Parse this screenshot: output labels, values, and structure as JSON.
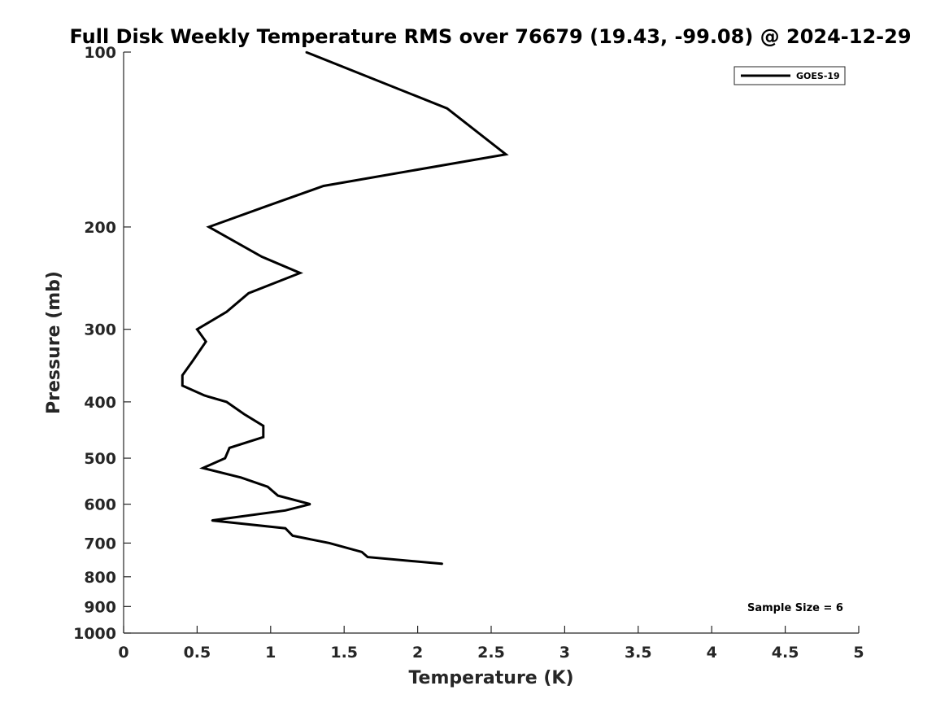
{
  "chart_data": {
    "type": "line",
    "title": "Full Disk Weekly Temperature RMS over 76679 (19.43, -99.08) @ 2024-12-29",
    "xlabel": "Temperature (K)",
    "ylabel": "Pressure (mb)",
    "xlim": [
      0,
      5
    ],
    "ylim": [
      100,
      1000
    ],
    "y_scale": "log",
    "y_reversed": true,
    "grid": false,
    "x_ticks": [
      0,
      0.5,
      1,
      1.5,
      2,
      2.5,
      3,
      3.5,
      4,
      4.5,
      5
    ],
    "x_tick_labels": [
      "0",
      "0.5",
      "1",
      "1.5",
      "2",
      "2.5",
      "3",
      "3.5",
      "4",
      "4.5",
      "5"
    ],
    "y_ticks": [
      100,
      200,
      300,
      400,
      500,
      600,
      700,
      800,
      900,
      1000
    ],
    "y_tick_labels": [
      "100",
      "200",
      "300",
      "400",
      "500",
      "600",
      "700",
      "800",
      "900",
      "1000"
    ],
    "legend_position": "top-right",
    "series": [
      {
        "name": "GOES-19",
        "color": "#000000",
        "points": [
          {
            "x": 1.24,
            "y": 100
          },
          {
            "x": 2.2,
            "y": 125
          },
          {
            "x": 2.6,
            "y": 150
          },
          {
            "x": 1.36,
            "y": 170
          },
          {
            "x": 0.95,
            "y": 185
          },
          {
            "x": 0.58,
            "y": 200
          },
          {
            "x": 0.94,
            "y": 225
          },
          {
            "x": 1.2,
            "y": 240
          },
          {
            "x": 0.85,
            "y": 260
          },
          {
            "x": 0.7,
            "y": 280
          },
          {
            "x": 0.5,
            "y": 300
          },
          {
            "x": 0.56,
            "y": 315
          },
          {
            "x": 0.47,
            "y": 340
          },
          {
            "x": 0.4,
            "y": 360
          },
          {
            "x": 0.4,
            "y": 375
          },
          {
            "x": 0.55,
            "y": 390
          },
          {
            "x": 0.7,
            "y": 400
          },
          {
            "x": 0.82,
            "y": 420
          },
          {
            "x": 0.95,
            "y": 440
          },
          {
            "x": 0.95,
            "y": 460
          },
          {
            "x": 0.72,
            "y": 480
          },
          {
            "x": 0.69,
            "y": 500
          },
          {
            "x": 0.54,
            "y": 520
          },
          {
            "x": 0.8,
            "y": 540
          },
          {
            "x": 0.98,
            "y": 560
          },
          {
            "x": 1.05,
            "y": 580
          },
          {
            "x": 1.27,
            "y": 600
          },
          {
            "x": 1.1,
            "y": 615
          },
          {
            "x": 0.6,
            "y": 640
          },
          {
            "x": 1.1,
            "y": 660
          },
          {
            "x": 1.15,
            "y": 680
          },
          {
            "x": 1.4,
            "y": 700
          },
          {
            "x": 1.62,
            "y": 725
          },
          {
            "x": 1.66,
            "y": 740
          },
          {
            "x": 2.17,
            "y": 760
          }
        ]
      }
    ],
    "annotation": "Sample Size = 6"
  }
}
